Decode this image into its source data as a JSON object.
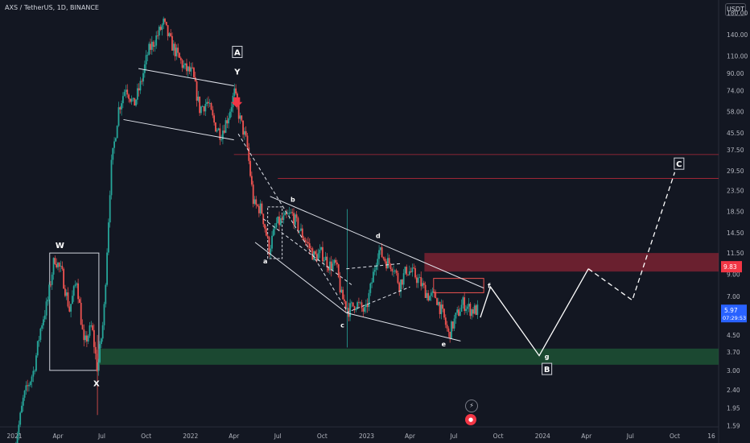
{
  "header": {
    "title": "AXS / TetherUS, 1D, BINANCE",
    "unit": "USDT"
  },
  "colors": {
    "background": "#131722",
    "up": "#26a69a",
    "down": "#ef5350",
    "resistance": "#b2283a",
    "support": "#1f5a37",
    "price_tag": "#2962ff",
    "resistance_tag": "#f23645"
  },
  "icons": [
    "tradingview-flash-icon",
    "tradingview-badge-icon"
  ],
  "chart_data": {
    "type": "candlestick",
    "symbol": "AXS / TetherUS",
    "timeframe": "1D",
    "exchange": "BINANCE",
    "y_scale": "log",
    "ylim": [
      1.5,
      190
    ],
    "xlim": [
      "2021-01-01",
      "2024-12-31"
    ],
    "y_ticks": [
      "180.00",
      "140.00",
      "110.00",
      "90.00",
      "74.00",
      "58.00",
      "45.50",
      "37.50",
      "29.50",
      "23.50",
      "18.50",
      "14.50",
      "11.50",
      "9.00",
      "7.00",
      "5.50",
      "4.50",
      "3.70",
      "3.00",
      "2.40",
      "1.95",
      "1.59"
    ],
    "x_ticks": [
      {
        "label": "2021",
        "date": "2021-01-01"
      },
      {
        "label": "Apr",
        "date": "2021-04-01"
      },
      {
        "label": "Jul",
        "date": "2021-07-01"
      },
      {
        "label": "Oct",
        "date": "2021-10-01"
      },
      {
        "label": "2022",
        "date": "2022-01-01"
      },
      {
        "label": "Apr",
        "date": "2022-04-01"
      },
      {
        "label": "Jul",
        "date": "2022-07-01"
      },
      {
        "label": "Oct",
        "date": "2022-10-01"
      },
      {
        "label": "2023",
        "date": "2023-01-01"
      },
      {
        "label": "Apr",
        "date": "2023-04-01"
      },
      {
        "label": "Jul",
        "date": "2023-07-01"
      },
      {
        "label": "Oct",
        "date": "2023-10-01"
      },
      {
        "label": "2024",
        "date": "2024-01-01"
      },
      {
        "label": "Apr",
        "date": "2024-04-01"
      },
      {
        "label": "Jul",
        "date": "2024-07-01"
      },
      {
        "label": "Oct",
        "date": "2024-10-01"
      },
      {
        "label": "16",
        "date": "2024-12-16"
      }
    ],
    "price_path": [
      [
        "2021-01-01",
        1.2
      ],
      [
        "2021-01-20",
        2.2
      ],
      [
        "2021-02-10",
        3.0
      ],
      [
        "2021-02-25",
        5.0
      ],
      [
        "2021-03-10",
        6.5
      ],
      [
        "2021-03-25",
        11.0
      ],
      [
        "2021-04-10",
        9.0
      ],
      [
        "2021-04-25",
        6.0
      ],
      [
        "2021-05-10",
        8.5
      ],
      [
        "2021-05-25",
        4.0
      ],
      [
        "2021-06-10",
        5.0
      ],
      [
        "2021-06-22",
        3.0
      ],
      [
        "2021-07-05",
        5.5
      ],
      [
        "2021-07-20",
        30.0
      ],
      [
        "2021-08-05",
        60.0
      ],
      [
        "2021-08-20",
        78.0
      ],
      [
        "2021-09-05",
        62.0
      ],
      [
        "2021-09-20",
        80.0
      ],
      [
        "2021-10-05",
        115.0
      ],
      [
        "2021-10-25",
        140.0
      ],
      [
        "2021-11-06",
        160.0
      ],
      [
        "2021-11-20",
        130.0
      ],
      [
        "2021-12-05",
        110.0
      ],
      [
        "2021-12-20",
        95.0
      ],
      [
        "2022-01-05",
        90.0
      ],
      [
        "2022-01-20",
        60.0
      ],
      [
        "2022-02-05",
        65.0
      ],
      [
        "2022-02-20",
        50.0
      ],
      [
        "2022-03-05",
        45.0
      ],
      [
        "2022-03-20",
        55.0
      ],
      [
        "2022-04-02",
        72.0
      ],
      [
        "2022-04-12",
        55.0
      ],
      [
        "2022-04-28",
        40.0
      ],
      [
        "2022-05-12",
        20.0
      ],
      [
        "2022-05-28",
        19.0
      ],
      [
        "2022-06-13",
        12.0
      ],
      [
        "2022-06-28",
        16.0
      ],
      [
        "2022-07-15",
        17.0
      ],
      [
        "2022-07-30",
        18.0
      ],
      [
        "2022-08-15",
        15.0
      ],
      [
        "2022-08-30",
        13.0
      ],
      [
        "2022-09-15",
        11.0
      ],
      [
        "2022-09-30",
        11.5
      ],
      [
        "2022-10-15",
        10.0
      ],
      [
        "2022-10-30",
        10.0
      ],
      [
        "2022-11-10",
        7.0
      ],
      [
        "2022-11-25",
        6.0
      ],
      [
        "2022-12-10",
        6.5
      ],
      [
        "2022-12-30",
        5.8
      ],
      [
        "2023-01-15",
        9.0
      ],
      [
        "2023-01-25",
        12.0
      ],
      [
        "2023-02-10",
        10.5
      ],
      [
        "2023-02-25",
        10.0
      ],
      [
        "2023-03-10",
        8.0
      ],
      [
        "2023-03-25",
        9.5
      ],
      [
        "2023-04-10",
        9.0
      ],
      [
        "2023-04-25",
        8.0
      ],
      [
        "2023-05-10",
        7.0
      ],
      [
        "2023-05-25",
        7.0
      ],
      [
        "2023-06-10",
        5.5
      ],
      [
        "2023-06-20",
        4.5
      ],
      [
        "2023-07-05",
        5.5
      ],
      [
        "2023-07-20",
        6.5
      ],
      [
        "2023-08-05",
        6.0
      ],
      [
        "2023-08-20",
        5.97
      ]
    ],
    "rectangles": [
      {
        "name": "W box",
        "x0": "2021-03-15",
        "x1": "2021-06-25",
        "y0": 3.0,
        "y1": 11.5
      },
      {
        "name": "b box",
        "x0": "2022-06-10",
        "x1": "2022-07-10",
        "y0": 10.8,
        "y1": 19.5
      },
      {
        "name": "f box",
        "x0": "2023-05-20",
        "x1": "2023-09-01",
        "y0": 7.3,
        "y1": 8.6
      },
      {
        "name": "resistance zone",
        "x0": "2023-05-01",
        "x1": "2024-12-31",
        "y0": 9.3,
        "y1": 11.5,
        "kind": "resistance"
      },
      {
        "name": "support zone",
        "x0": "2021-06-25",
        "x1": "2024-12-31",
        "y0": 3.2,
        "y1": 3.85,
        "kind": "support"
      }
    ],
    "horizontal_lines": [
      {
        "y": 35.5,
        "x0": "2022-04-01"
      },
      {
        "y": 27.0,
        "x0": "2022-07-01"
      }
    ],
    "trendlines": [
      {
        "name": "upper channel",
        "from": [
          "2021-09-15",
          95.0
        ],
        "to": [
          "2022-04-01",
          78.0
        ]
      },
      {
        "name": "lower channel",
        "from": [
          "2021-08-15",
          53.0
        ],
        "to": [
          "2022-04-01",
          42.0
        ]
      },
      {
        "name": "wedge upper",
        "from": [
          "2022-06-15",
          22.0
        ],
        "to": [
          "2023-09-01",
          7.7
        ]
      },
      {
        "name": "wedge lower",
        "from": [
          "2022-05-15",
          13.0
        ],
        "to": [
          "2022-11-20",
          5.8
        ]
      },
      {
        "name": "wedge lower 2",
        "from": [
          "2022-11-20",
          5.8
        ],
        "to": [
          "2023-07-15",
          4.2
        ]
      },
      {
        "name": "dashed channel 1",
        "from": [
          "2022-04-10",
          45.0
        ],
        "to": [
          "2022-11-20",
          6.0
        ],
        "dashed": true
      },
      {
        "name": "dashed channel 2",
        "from": [
          "2022-06-01",
          17.0
        ],
        "to": [
          "2022-12-01",
          8.0
        ],
        "dashed": true
      },
      {
        "name": "dashed b-c",
        "from": [
          "2022-11-20",
          5.8
        ],
        "to": [
          "2023-04-01",
          7.8
        ],
        "dashed": true
      },
      {
        "name": "dashed c-d top",
        "from": [
          "2022-11-20",
          9.6
        ],
        "to": [
          "2023-03-15",
          10.2
        ],
        "dashed": true
      }
    ],
    "projection": [
      {
        "path": [
          [
            "2023-08-25",
            5.5
          ],
          [
            "2023-09-15",
            7.8
          ],
          [
            "2023-12-25",
            3.55
          ],
          [
            "2024-04-05",
            9.6
          ]
        ],
        "dashed": false
      },
      {
        "path": [
          [
            "2024-04-05",
            9.6
          ],
          [
            "2024-07-05",
            6.7
          ],
          [
            "2024-10-01",
            29.0
          ]
        ],
        "dashed": true
      }
    ],
    "markers": [
      {
        "type": "arrow-down",
        "date": "2022-04-07",
        "price": 63.0,
        "color": "#f23645"
      }
    ],
    "annotations": [
      {
        "text": "W",
        "date": "2021-04-05",
        "price": 12.6
      },
      {
        "text": "X",
        "date": "2021-06-20",
        "price": 2.6
      },
      {
        "text": "A",
        "date": "2022-04-08",
        "price": 115.0,
        "boxed": true
      },
      {
        "text": "Y",
        "date": "2022-04-08",
        "price": 92.0
      },
      {
        "text": "a",
        "date": "2022-06-05",
        "price": 10.6
      },
      {
        "text": "b",
        "date": "2022-08-01",
        "price": 21.5
      },
      {
        "text": "c",
        "date": "2022-11-12",
        "price": 5.1
      },
      {
        "text": "d",
        "date": "2023-01-25",
        "price": 14.2
      },
      {
        "text": "e",
        "date": "2023-06-10",
        "price": 4.1
      },
      {
        "text": "f",
        "date": "2023-09-12",
        "price": 8.0
      },
      {
        "text": "g",
        "date": "2024-01-10",
        "price": 3.55
      },
      {
        "text": "B",
        "date": "2024-01-10",
        "price": 3.05,
        "boxed": true
      },
      {
        "text": "C",
        "date": "2024-10-10",
        "price": 32.0,
        "boxed": true
      }
    ],
    "last_price": {
      "value": "5.97",
      "countdown": "07:29:53"
    },
    "resistance_price": "9.83"
  }
}
